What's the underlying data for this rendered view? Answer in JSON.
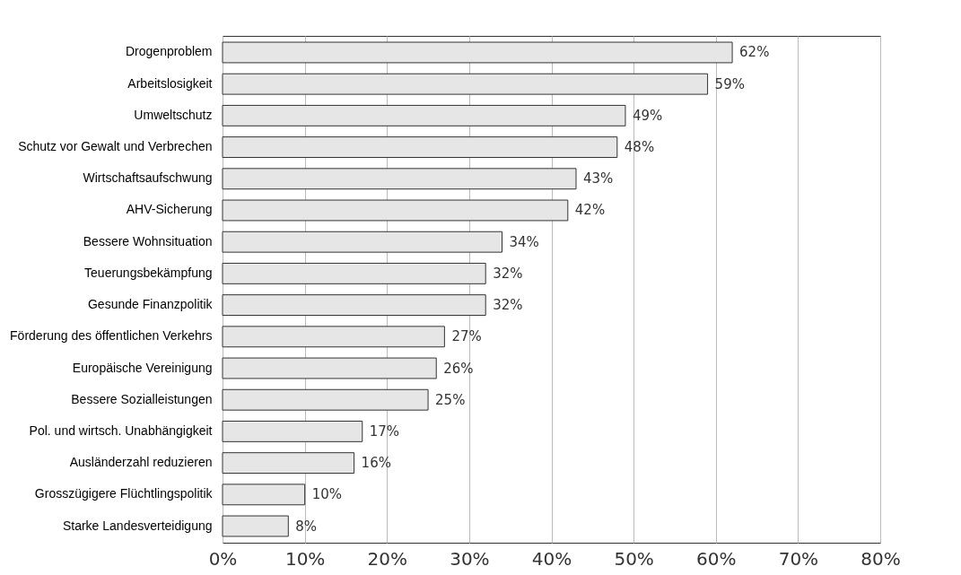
{
  "chart_data": {
    "type": "bar",
    "orientation": "horizontal",
    "categories": [
      "Drogenproblem",
      "Arbeitslosigkeit",
      "Umweltschutz",
      "Schutz vor Gewalt und Verbrechen",
      "Wirtschaftsaufschwung",
      "AHV-Sicherung",
      "Bessere Wohnsituation",
      "Teuerungsbekämpfung",
      "Gesunde Finanzpolitik",
      "Förderung des öffentlichen Verkehrs",
      "Europäische Vereinigung",
      "Bessere Sozialleistungen",
      "Pol. und wirtsch. Unabhängigkeit",
      "Ausländerzahl reduzieren",
      "Grosszügigere Flüchtlingspolitik",
      "Starke Landesverteidigung"
    ],
    "values": [
      62,
      59,
      49,
      48,
      43,
      42,
      34,
      32,
      32,
      27,
      26,
      25,
      17,
      16,
      10,
      8
    ],
    "value_labels": [
      "62%",
      "59%",
      "49%",
      "48%",
      "43%",
      "42%",
      "34%",
      "32%",
      "32%",
      "27%",
      "26%",
      "25%",
      "17%",
      "16%",
      "10%",
      "8%"
    ],
    "color": "#e6e6e6",
    "xlim": [
      0,
      80
    ],
    "xticks": [
      {
        "value": 0,
        "label": "0%"
      },
      {
        "value": 10,
        "label": "10%"
      },
      {
        "value": 20,
        "label": "20%"
      },
      {
        "value": 30,
        "label": "30%"
      },
      {
        "value": 40,
        "label": "40%"
      },
      {
        "value": 50,
        "label": "50%"
      },
      {
        "value": 60,
        "label": "60%"
      },
      {
        "value": 70,
        "label": "70%"
      },
      {
        "value": 80,
        "label": "80%"
      }
    ],
    "grid": "x"
  }
}
